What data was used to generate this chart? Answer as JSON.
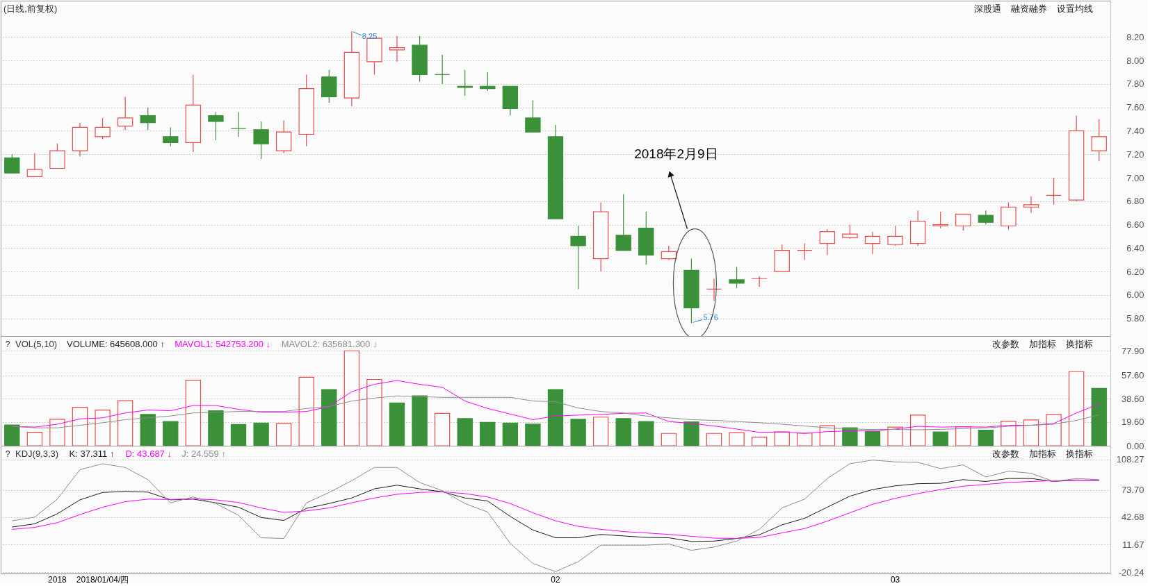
{
  "chart_data": [
    {
      "type": "candlestick",
      "title": "(日线,前复权)",
      "categories": [
        null,
        null,
        "2018",
        null,
        "2018/01/04/四",
        null,
        null,
        null,
        null,
        null,
        null,
        null,
        null,
        null,
        null,
        null,
        null,
        null,
        null,
        null,
        null,
        null,
        null,
        null,
        "02",
        null,
        null,
        null,
        null,
        null,
        null,
        null,
        null,
        null,
        null,
        null,
        null,
        null,
        null,
        "03",
        null,
        null,
        null,
        null,
        null,
        null,
        null,
        null,
        null
      ],
      "ohlc": [
        [
          7.17,
          7.2,
          7.04,
          7.04
        ],
        [
          7.01,
          7.21,
          7.01,
          7.07
        ],
        [
          7.08,
          7.29,
          7.08,
          7.23
        ],
        [
          7.23,
          7.47,
          7.18,
          7.43
        ],
        [
          7.35,
          7.51,
          7.33,
          7.43
        ],
        [
          7.44,
          7.69,
          7.41,
          7.51
        ],
        [
          7.53,
          7.6,
          7.41,
          7.47
        ],
        [
          7.35,
          7.43,
          7.27,
          7.3
        ],
        [
          7.3,
          7.88,
          7.22,
          7.62
        ],
        [
          7.53,
          7.56,
          7.32,
          7.48
        ],
        [
          7.42,
          7.56,
          7.35,
          7.42
        ],
        [
          7.41,
          7.48,
          7.16,
          7.29
        ],
        [
          7.23,
          7.49,
          7.21,
          7.39
        ],
        [
          7.37,
          7.88,
          7.27,
          7.76
        ],
        [
          7.86,
          7.92,
          7.64,
          7.69
        ],
        [
          7.68,
          8.25,
          7.61,
          8.07
        ],
        [
          7.99,
          8.19,
          7.88,
          8.19
        ],
        [
          8.09,
          8.21,
          7.99,
          8.11
        ],
        [
          8.13,
          8.21,
          7.82,
          7.88
        ],
        [
          7.88,
          8.05,
          7.8,
          7.88
        ],
        [
          7.78,
          7.92,
          7.7,
          7.77
        ],
        [
          7.78,
          7.9,
          7.74,
          7.76
        ],
        [
          7.78,
          7.78,
          7.53,
          7.59
        ],
        [
          7.51,
          7.66,
          7.39,
          7.39
        ],
        [
          7.35,
          7.45,
          6.65,
          6.65
        ],
        [
          6.5,
          6.59,
          6.05,
          6.42
        ],
        [
          6.31,
          6.79,
          6.2,
          6.71
        ],
        [
          6.51,
          6.86,
          6.38,
          6.38
        ],
        [
          6.57,
          6.71,
          6.26,
          6.34
        ],
        [
          6.31,
          6.42,
          6.3,
          6.37
        ],
        [
          6.21,
          6.31,
          5.76,
          5.89
        ],
        [
          6.05,
          6.14,
          5.95,
          6.05
        ],
        [
          6.13,
          6.24,
          6.06,
          6.1
        ],
        [
          6.14,
          6.16,
          6.07,
          6.14
        ],
        [
          6.2,
          6.43,
          6.2,
          6.38
        ],
        [
          6.38,
          6.44,
          6.3,
          6.38
        ],
        [
          6.44,
          6.56,
          6.34,
          6.54
        ],
        [
          6.49,
          6.6,
          6.48,
          6.52
        ],
        [
          6.44,
          6.54,
          6.35,
          6.5
        ],
        [
          6.43,
          6.59,
          6.42,
          6.5
        ],
        [
          6.44,
          6.72,
          6.42,
          6.63
        ],
        [
          6.59,
          6.71,
          6.57,
          6.6
        ],
        [
          6.59,
          6.69,
          6.55,
          6.69
        ],
        [
          6.68,
          6.72,
          6.6,
          6.62
        ],
        [
          6.59,
          6.79,
          6.56,
          6.75
        ],
        [
          6.75,
          6.84,
          6.7,
          6.77
        ],
        [
          6.85,
          7.0,
          6.77,
          6.85
        ],
        [
          6.81,
          7.53,
          6.8,
          7.4
        ],
        [
          7.23,
          7.5,
          7.14,
          7.35
        ]
      ],
      "colors": [
        "#3a913a",
        "#e94b4b",
        "#e94b4b",
        "#e94b4b",
        "#e94b4b",
        "#e94b4b",
        "#3a913a",
        "#3a913a",
        "#e94b4b",
        "#3a913a",
        "#3a913a",
        "#3a913a",
        "#e94b4b",
        "#e94b4b",
        "#3a913a",
        "#e94b4b",
        "#e94b4b",
        "#e94b4b",
        "#3a913a",
        "#3a913a",
        "#3a913a",
        "#3a913a",
        "#3a913a",
        "#3a913a",
        "#3a913a",
        "#3a913a",
        "#e94b4b",
        "#3a913a",
        "#3a913a",
        "#e94b4b",
        "#3a913a",
        "#e94b4b",
        "#3a913a",
        "#e94b4b",
        "#e94b4b",
        "#e94b4b",
        "#e94b4b",
        "#e94b4b",
        "#e94b4b",
        "#e94b4b",
        "#e94b4b",
        "#e94b4b",
        "#e94b4b",
        "#3a913a",
        "#e94b4b",
        "#e94b4b",
        "#e94b4b",
        "#e94b4b",
        "#e94b4b"
      ],
      "ylim": [
        5.65,
        8.51
      ],
      "yticks": [
        {
          "value": 5.8,
          "label": "5.80"
        },
        {
          "value": 6.0,
          "label": "6.00"
        },
        {
          "value": 6.2,
          "label": "6.20"
        },
        {
          "value": 6.4,
          "label": "6.40"
        },
        {
          "value": 6.6,
          "label": "6.60"
        },
        {
          "value": 6.8,
          "label": "6.80"
        },
        {
          "value": 7.0,
          "label": "7.00"
        },
        {
          "value": 7.2,
          "label": "7.20"
        },
        {
          "value": 7.4,
          "label": "7.40"
        },
        {
          "value": 7.6,
          "label": "7.60"
        },
        {
          "value": 7.8,
          "label": "7.80"
        },
        {
          "value": 8.0,
          "label": "8.00"
        },
        {
          "value": 8.2,
          "label": "8.20"
        }
      ],
      "grid": "y",
      "tick_labels": "y",
      "annotations": [
        "8.25",
        "5.76",
        "2018年2月9日",
        "深股通",
        "融资融券",
        "设置均线"
      ]
    },
    {
      "type": "bar",
      "title": "VOL(5,10)",
      "categories": [
        null,
        null,
        "2018",
        null,
        "2018/01/04/四",
        null,
        null,
        null,
        null,
        null,
        null,
        null,
        null,
        null,
        null,
        null,
        null,
        null,
        null,
        null,
        null,
        null,
        null,
        null,
        "02",
        null,
        null,
        null,
        null,
        null,
        null,
        null,
        null,
        null,
        null,
        null,
        null,
        null,
        null,
        "03",
        null,
        null,
        null,
        null,
        null,
        null,
        null,
        null,
        null
      ],
      "series": [
        {
          "colors": [
            "#3a913a",
            "#e94b4b",
            "#e94b4b",
            "#e94b4b",
            "#e94b4b",
            "#e94b4b",
            "#3a913a",
            "#3a913a",
            "#e94b4b",
            "#3a913a",
            "#3a913a",
            "#3a913a",
            "#e94b4b",
            "#e94b4b",
            "#3a913a",
            "#e94b4b",
            "#e94b4b",
            "#3a913a",
            "#3a913a",
            "#e94b4b",
            "#3a913a",
            "#3a913a",
            "#3a913a",
            "#3a913a",
            "#3a913a",
            "#3a913a",
            "#e94b4b",
            "#3a913a",
            "#3a913a",
            "#e94b4b",
            "#3a913a",
            "#e94b4b",
            "#e94b4b",
            "#e94b4b",
            "#e94b4b",
            "#e94b4b",
            "#e94b4b",
            "#3a913a",
            "#3a913a",
            "#e94b4b",
            "#e94b4b",
            "#3a913a",
            "#e94b4b",
            "#3a913a",
            "#e94b4b",
            "#e94b4b",
            "#e94b4b",
            "#e94b4b",
            "#3a913a"
          ],
          "values": [
            17.1,
            11.0,
            21.7,
            31.5,
            29.3,
            37.0,
            25.7,
            19.9,
            53.8,
            28.7,
            17.4,
            18.6,
            18.3,
            56.2,
            46.1,
            77.9,
            54.4,
            35.1,
            40.9,
            26.6,
            22.3,
            19.2,
            18.6,
            17.7,
            46.1,
            21.7,
            23.5,
            22.3,
            19.9,
            10.1,
            19.6,
            10.1,
            10.7,
            7.0,
            11.3,
            10.4,
            16.5,
            14.7,
            11.6,
            15.3,
            25.1,
            11.3,
            15.6,
            12.8,
            20.2,
            21.1,
            25.7,
            60.8,
            47.1
          ]
        },
        {
          "name": "MAVOL1: 542753.200 ↓",
          "type": "line",
          "color": "#ff00ff",
          "values": [
            15.9,
            15.3,
            17.7,
            22.0,
            22.9,
            26.9,
            29.3,
            28.7,
            33.0,
            33.0,
            29.9,
            27.5,
            27.5,
            28.1,
            32.1,
            44.3,
            50.4,
            53.5,
            50.4,
            48.0,
            36.7,
            30.6,
            26.0,
            21.4,
            24.4,
            25.1,
            25.7,
            26.6,
            26.9,
            19.9,
            18.3,
            16.2,
            13.7,
            11.0,
            11.3,
            10.1,
            11.6,
            12.2,
            12.2,
            13.7,
            15.9,
            15.3,
            15.6,
            15.3,
            16.8,
            16.8,
            18.3,
            26.9,
            34.2
          ]
        },
        {
          "name": "MAVOL2: 635681.300 ↓",
          "type": "line",
          "color": "#8c8c8c",
          "values": [
            15.9,
            14.7,
            14.7,
            16.8,
            18.9,
            21.4,
            22.9,
            24.4,
            26.9,
            27.5,
            28.1,
            28.1,
            28.1,
            30.6,
            32.1,
            36.7,
            39.1,
            40.9,
            40.3,
            39.7,
            39.7,
            39.7,
            39.7,
            36.7,
            36.1,
            31.0,
            28.1,
            26.9,
            24.4,
            22.9,
            21.4,
            20.8,
            19.9,
            18.9,
            17.7,
            16.2,
            14.7,
            13.7,
            13.4,
            13.4,
            13.1,
            13.4,
            14.1,
            14.7,
            15.9,
            16.8,
            17.7,
            20.8,
            25.4
          ]
        }
      ],
      "ylim": [
        0,
        90
      ],
      "yticks": [
        {
          "value": 0,
          "label": "0.00"
        },
        {
          "value": 19.6,
          "label": "19.60"
        },
        {
          "value": 38.6,
          "label": "38.60"
        },
        {
          "value": 57.6,
          "label": "57.60"
        },
        {
          "value": 77.9,
          "label": "77.90"
        }
      ],
      "grid": "y",
      "legend": "top left",
      "tick_labels": "y",
      "annotations": [
        "?",
        "VOLUME: 645608.000 ↑",
        "改参数",
        "加指标",
        "换指标"
      ]
    },
    {
      "type": "line",
      "title": "KDJ(9,3,3)",
      "categories": [
        null,
        null,
        "2018",
        null,
        "2018/01/04/四",
        null,
        null,
        null,
        null,
        null,
        null,
        null,
        null,
        null,
        null,
        null,
        null,
        null,
        null,
        null,
        null,
        null,
        null,
        null,
        "02",
        null,
        null,
        null,
        null,
        null,
        null,
        null,
        null,
        null,
        null,
        null,
        null,
        null,
        null,
        "03",
        null,
        null,
        null,
        null,
        null,
        null,
        null,
        null,
        null
      ],
      "series": [
        {
          "name": "K: 37.311 ↑",
          "color": "#1a1a1a",
          "values": [
            31.4,
            35.1,
            46.5,
            62.4,
            70.8,
            72.0,
            71.2,
            62.4,
            63.2,
            59.0,
            54.0,
            42.3,
            38.9,
            52.7,
            58.2,
            64.5,
            74.9,
            79.1,
            74.9,
            71.6,
            64.5,
            61.1,
            43.5,
            28.0,
            19.2,
            19.2,
            23.0,
            21.3,
            19.6,
            19.2,
            15.0,
            15.4,
            18.4,
            22.6,
            33.9,
            41.4,
            54.0,
            66.6,
            74.1,
            78.3,
            80.8,
            81.2,
            85.4,
            83.3,
            86.7,
            86.7,
            83.3,
            85.0,
            84.6
          ]
        },
        {
          "name": "D: 43.687 ↓",
          "color": "#ff00ff",
          "values": [
            28.8,
            31.0,
            36.4,
            45.6,
            54.0,
            60.3,
            63.2,
            62.8,
            63.6,
            62.4,
            59.4,
            53.2,
            48.1,
            49.8,
            53.2,
            59.0,
            64.5,
            68.7,
            70.8,
            71.6,
            69.5,
            65.7,
            58.2,
            47.7,
            38.5,
            32.2,
            28.8,
            26.3,
            24.7,
            23.0,
            20.9,
            18.8,
            18.4,
            19.6,
            24.7,
            29.7,
            38.1,
            47.7,
            57.3,
            64.1,
            69.5,
            74.1,
            77.9,
            80.0,
            82.1,
            83.3,
            84.2,
            84.6,
            84.6
          ]
        },
        {
          "name": "J: 24.559 ↑",
          "color": "#8c8c8c",
          "values": [
            38.5,
            42.7,
            63.2,
            96.8,
            103.5,
            99.3,
            85.4,
            59.0,
            65.7,
            58.2,
            44.8,
            19.2,
            18.4,
            59.0,
            70.8,
            84.2,
            99.3,
            99.3,
            82.1,
            72.9,
            58.2,
            48.5,
            12.9,
            -10.1,
            -19.4,
            -8.1,
            10.8,
            10.8,
            10.8,
            12.1,
            4.9,
            8.7,
            15.4,
            28.8,
            53.2,
            63.2,
            86.7,
            103.5,
            107.7,
            105.6,
            105.1,
            98.0,
            102.2,
            88.4,
            95.1,
            92.6,
            83.3,
            86.7,
            85.4
          ]
        }
      ],
      "ylim": [
        -21.5,
        124
      ],
      "yticks": [
        -20.24,
        11.67,
        42.68,
        {
          "value": 73.7,
          "label": "73.70"
        },
        108.27
      ],
      "grid": "y",
      "legend": "top left",
      "annotations": [
        "?",
        "改参数",
        "加指标",
        "换指标"
      ]
    }
  ]
}
